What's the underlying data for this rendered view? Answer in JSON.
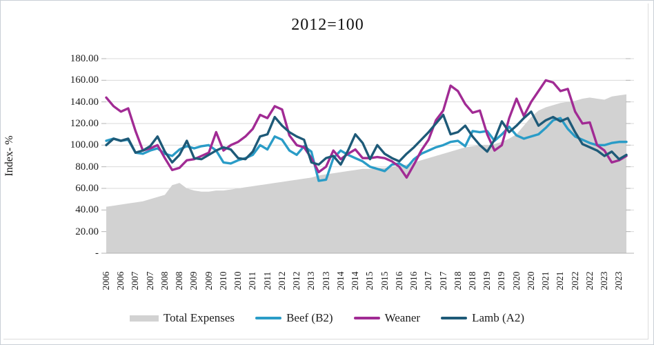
{
  "chart_data": {
    "type": "area+line",
    "title": "2012=100",
    "ylabel": "Index- %",
    "ylim": [
      0,
      180
    ],
    "ytick_step": 20,
    "grid": "horizontal",
    "legend_position": "bottom",
    "yticks": [
      {
        "label": "180.00",
        "value": 180
      },
      {
        "label": "160.00",
        "value": 160
      },
      {
        "label": "140.00",
        "value": 140
      },
      {
        "label": "120.00",
        "value": 120
      },
      {
        "label": "100.00",
        "value": 100
      },
      {
        "label": "80.00",
        "value": 80
      },
      {
        "label": "60.00",
        "value": 60
      },
      {
        "label": "40.00",
        "value": 40
      },
      {
        "label": "20.00",
        "value": 20
      },
      {
        "label": "-",
        "value": 0
      }
    ],
    "x_labels": [
      "2006",
      "2006",
      "2007",
      "2007",
      "2008",
      "2008",
      "2009",
      "2009",
      "2010",
      "2010",
      "2011",
      "2011",
      "2012",
      "2012",
      "2013",
      "2013",
      "2014",
      "2014",
      "2015",
      "2015",
      "2016",
      "2016",
      "2017",
      "2017",
      "2018",
      "2018",
      "2019",
      "2019",
      "2020",
      "2020",
      "2021",
      "2021",
      "2022",
      "2022",
      "2023",
      "2023"
    ],
    "points_per_label": 2,
    "x_period": "quarterly 2006Q1 - 2023Q4",
    "series": [
      {
        "name": "Total Expenses",
        "type": "area",
        "color": "#d2d2d2",
        "values": [
          43,
          44,
          45,
          46,
          47,
          48,
          50,
          52,
          54,
          63,
          65,
          60,
          58,
          57,
          57,
          58,
          58,
          59,
          60,
          61,
          62,
          63,
          64,
          65,
          66,
          67,
          68,
          69,
          70,
          72,
          73,
          74,
          75,
          76,
          77,
          78,
          78,
          79,
          79,
          80,
          81,
          82,
          84,
          86,
          88,
          90,
          92,
          94,
          96,
          98,
          99,
          100,
          100,
          101,
          103,
          106,
          110,
          118,
          126,
          132,
          135,
          137,
          139,
          140,
          141,
          143,
          144,
          143,
          142,
          145,
          146,
          147
        ]
      },
      {
        "name": "Beef (B2)",
        "type": "line",
        "color": "#2a9cc7",
        "values": [
          104,
          106,
          104,
          105,
          93,
          92,
          95,
          97,
          92,
          90,
          96,
          99,
          97,
          99,
          100,
          95,
          84,
          83,
          86,
          88,
          91,
          100,
          96,
          108,
          105,
          95,
          91,
          99,
          94,
          67,
          68,
          88,
          95,
          91,
          88,
          85,
          80,
          78,
          76,
          82,
          83,
          79,
          87,
          92,
          95,
          98,
          100,
          103,
          104,
          99,
          113,
          112,
          113,
          104,
          110,
          117,
          109,
          106,
          108,
          110,
          116,
          123,
          125,
          115,
          108,
          105,
          102,
          100,
          100,
          102,
          103,
          103
        ]
      },
      {
        "name": "Weaner",
        "type": "line",
        "color": "#a12b94",
        "values": [
          144,
          136,
          131,
          134,
          113,
          95,
          97,
          100,
          88,
          77,
          79,
          86,
          87,
          90,
          93,
          112,
          95,
          100,
          103,
          108,
          115,
          128,
          125,
          136,
          133,
          109,
          100,
          98,
          88,
          75,
          80,
          95,
          87,
          92,
          96,
          88,
          88,
          89,
          88,
          85,
          80,
          70,
          82,
          95,
          105,
          123,
          132,
          155,
          150,
          138,
          130,
          132,
          110,
          95,
          100,
          125,
          143,
          127,
          140,
          150,
          160,
          158,
          150,
          152,
          131,
          120,
          121,
          100,
          95,
          84,
          86,
          90
        ]
      },
      {
        "name": "Lamb (A2)",
        "type": "line",
        "color": "#1e5a78",
        "values": [
          100,
          106,
          104,
          106,
          93,
          95,
          99,
          108,
          94,
          84,
          91,
          104,
          88,
          87,
          91,
          95,
          98,
          96,
          88,
          87,
          94,
          108,
          110,
          126,
          118,
          112,
          108,
          105,
          84,
          82,
          88,
          90,
          82,
          95,
          110,
          102,
          87,
          100,
          92,
          88,
          85,
          92,
          98,
          105,
          112,
          120,
          128,
          110,
          112,
          118,
          108,
          100,
          94,
          105,
          122,
          112,
          118,
          125,
          131,
          118,
          123,
          126,
          122,
          125,
          112,
          101,
          98,
          95,
          90,
          94,
          87,
          91
        ]
      }
    ],
    "colors": {
      "gridline": "#dadada",
      "axis": "#b3b3b3",
      "text": "#1c1c1c"
    }
  }
}
